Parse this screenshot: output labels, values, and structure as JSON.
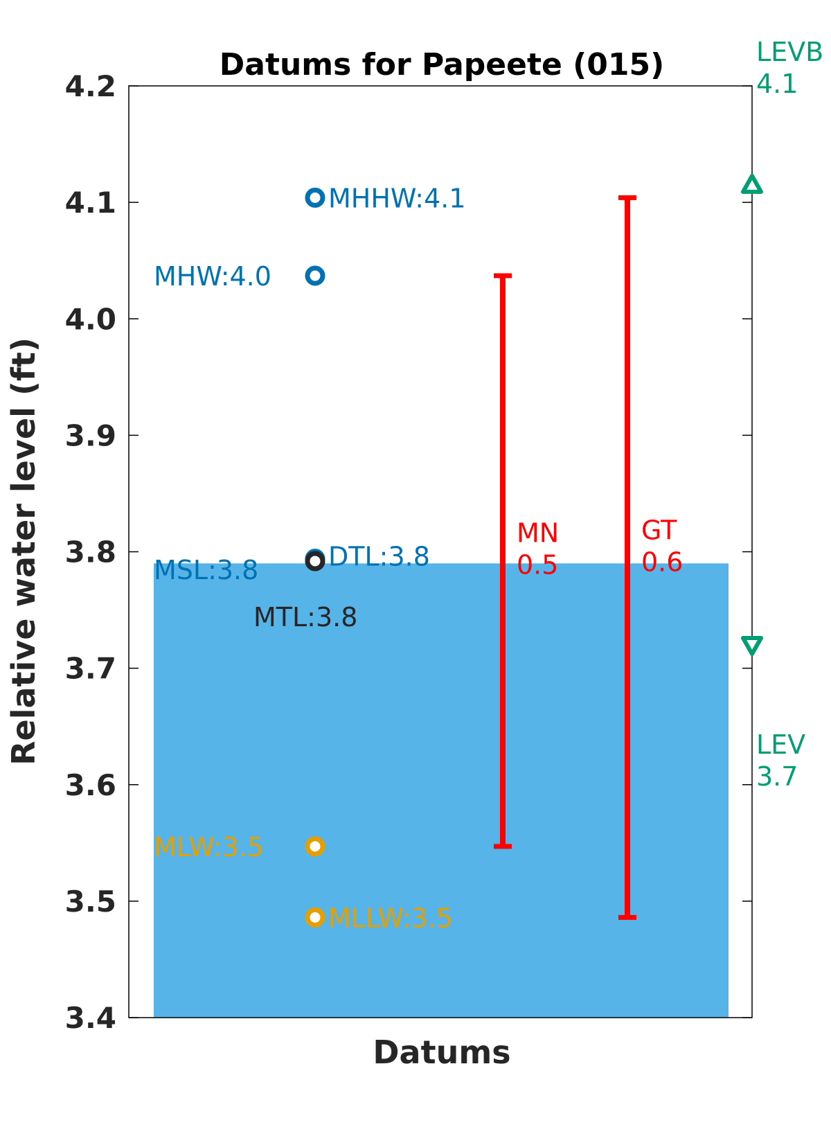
{
  "chart_data": {
    "type": "scatter",
    "title": "Datums for Papeete (015)",
    "xlabel": "Datums",
    "ylabel": "Relative water level (ft)",
    "ylim": [
      3.4,
      4.2
    ],
    "y_ticks": [
      "3.4",
      "3.5",
      "3.6",
      "3.7",
      "3.8",
      "3.9",
      "4.0",
      "4.1",
      "4.2"
    ],
    "grid": false,
    "background_level": {
      "value": 3.79,
      "color": "#56b4e9"
    },
    "datums": [
      {
        "id": "mhhw",
        "label": "MHHW:4.1",
        "value": 4.104,
        "color": "#0072b2",
        "marker_color": "#0072b2"
      },
      {
        "id": "mhw",
        "label": "MHW:4.0",
        "value": 4.037,
        "color": "#0072b2",
        "marker_color": "#0072b2"
      },
      {
        "id": "msl",
        "label": "MSL:3.8",
        "value": 3.792,
        "color": "#0072b2",
        "marker_color": "#0072b2"
      },
      {
        "id": "dtl",
        "label": "DTL:3.8",
        "value": 3.794,
        "color": "#0072b2",
        "marker_color": "#0072b2"
      },
      {
        "id": "mtl",
        "label": "MTL:3.8",
        "value": 3.792,
        "color": "#262626",
        "marker_color": "#262626"
      },
      {
        "id": "mlw",
        "label": "MLW:3.5",
        "value": 3.547,
        "color": "#e69f00",
        "marker_color": "#e69f00"
      },
      {
        "id": "mllw",
        "label": "MLLW:3.5",
        "value": 3.486,
        "color": "#e69f00",
        "marker_color": "#e69f00"
      }
    ],
    "ranges": [
      {
        "id": "mn",
        "name": "MN",
        "value_text": "0.5",
        "low": 3.547,
        "high": 4.037,
        "color": "#ff0000"
      },
      {
        "id": "gt",
        "name": "GT",
        "value_text": "0.6",
        "low": 3.486,
        "high": 4.104,
        "color": "#ff0000"
      }
    ],
    "extremes": [
      {
        "id": "levb",
        "name": "LEVB",
        "value_text": "4.1",
        "value": 4.115,
        "marker": "triangle-up",
        "color": "#009e73"
      },
      {
        "id": "lev",
        "name": "LEV",
        "value_text": "3.7",
        "value": 3.72,
        "marker": "triangle-down",
        "color": "#009e73"
      }
    ]
  }
}
